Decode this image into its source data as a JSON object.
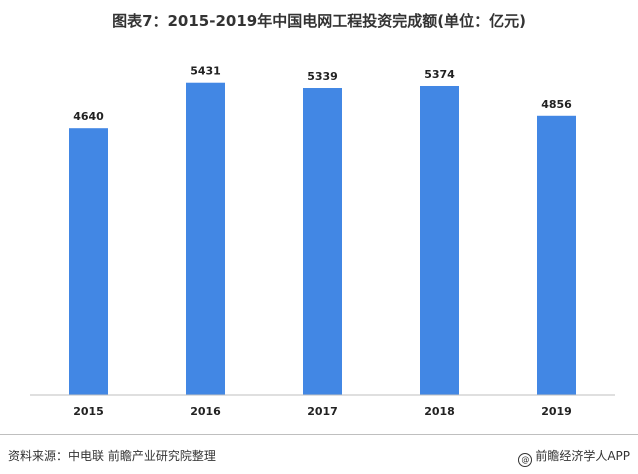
{
  "page": {
    "source": "资料来源：中电联 前瞻产业研究院整理",
    "brand": "前瞻经济学人APP",
    "brand_icon": "at-icon"
  },
  "chart_data": {
    "type": "bar",
    "title": "图表7：2015-2019年中国电网工程投资完成额(单位：亿元)",
    "categories": [
      "2015",
      "2016",
      "2017",
      "2018",
      "2019"
    ],
    "values": [
      4640,
      5431,
      5339,
      5374,
      4856
    ],
    "ylim": [
      0,
      6000
    ],
    "grid": false,
    "bar_color": "#4287e4",
    "legend": "none"
  }
}
